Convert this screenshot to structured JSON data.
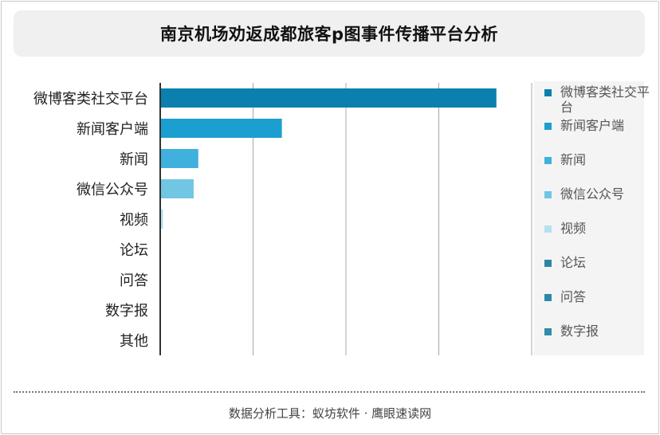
{
  "title": "南京机场劝返成都旅客p图事件传播平台分析",
  "footer": "数据分析工具：蚁坊软件 · 鹰眼速读网",
  "chart_data": {
    "type": "bar",
    "orientation": "horizontal",
    "title": "南京机场劝返成都旅客p图事件传播平台分析",
    "categories": [
      "微博客类社交平台",
      "新闻客户端",
      "新闻",
      "微信公众号",
      "视频",
      "论坛",
      "问答",
      "数字报",
      "其他"
    ],
    "values": [
      1810,
      655,
      205,
      180,
      15,
      0,
      0,
      0,
      0
    ],
    "xlim": [
      0,
      2000
    ],
    "grid": true,
    "legend": "right",
    "colors": [
      "#0b7fad",
      "#1a9fd0",
      "#40b0dc",
      "#70c6e3",
      "#b5e1ef",
      "#2f86a3",
      "#2b8aa8",
      "#2e8eaa",
      "#2a87a3"
    ]
  }
}
